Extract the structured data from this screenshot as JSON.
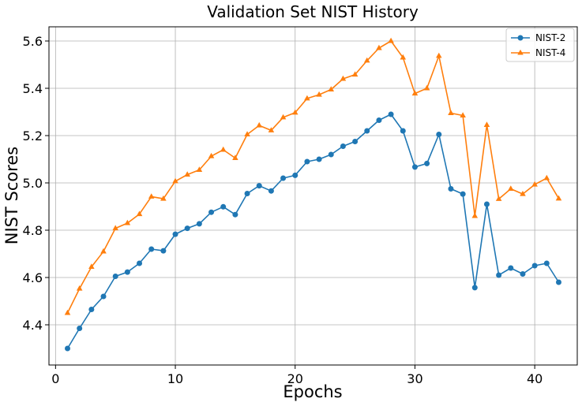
{
  "chart_data": {
    "type": "line",
    "title": "Validation Set NIST History",
    "xlabel": "Epochs",
    "ylabel": "NIST Scores",
    "xlim": [
      -0.55,
      43.55
    ],
    "ylim": [
      4.23,
      5.66
    ],
    "xticks": [
      0,
      10,
      20,
      30,
      40
    ],
    "xtick_labels": [
      "0",
      "10",
      "20",
      "30",
      "40"
    ],
    "yticks": [
      4.4,
      4.6,
      4.8,
      5.0,
      5.2,
      5.4,
      5.6
    ],
    "ytick_labels": [
      "4.4",
      "4.6",
      "4.8",
      "5.0",
      "5.2",
      "5.4",
      "5.6"
    ],
    "grid": true,
    "legend_position": "top-right",
    "x": [
      1,
      2,
      3,
      4,
      5,
      6,
      7,
      8,
      9,
      10,
      11,
      12,
      13,
      14,
      15,
      16,
      17,
      18,
      19,
      20,
      21,
      22,
      23,
      24,
      25,
      26,
      27,
      28,
      29,
      30,
      31,
      32,
      33,
      34,
      35,
      36,
      37,
      38,
      39,
      40,
      41,
      42
    ],
    "series": [
      {
        "name": "NIST-2",
        "color": "#1f77b4",
        "marker": "circle",
        "values": [
          4.3,
          4.385,
          4.465,
          4.52,
          4.605,
          4.623,
          4.66,
          4.72,
          4.713,
          4.783,
          4.808,
          4.827,
          4.876,
          4.899,
          4.866,
          4.955,
          4.988,
          4.966,
          5.02,
          5.032,
          5.09,
          5.1,
          5.12,
          5.155,
          5.175,
          5.22,
          5.265,
          5.29,
          5.22,
          5.067,
          5.082,
          5.205,
          4.975,
          4.953,
          4.557,
          4.91,
          4.61,
          4.64,
          4.615,
          4.65,
          4.66,
          4.58
        ]
      },
      {
        "name": "NIST-4",
        "color": "#ff7f0e",
        "marker": "triangle",
        "values": [
          4.45,
          4.553,
          4.645,
          4.71,
          4.808,
          4.83,
          4.868,
          4.942,
          4.933,
          5.007,
          5.035,
          5.055,
          5.113,
          5.14,
          5.105,
          5.205,
          5.243,
          5.222,
          5.277,
          5.297,
          5.357,
          5.373,
          5.395,
          5.44,
          5.458,
          5.517,
          5.57,
          5.6,
          5.53,
          5.378,
          5.4,
          5.537,
          5.295,
          5.285,
          4.86,
          5.245,
          4.932,
          4.975,
          4.953,
          4.993,
          5.02,
          4.934
        ]
      }
    ]
  }
}
